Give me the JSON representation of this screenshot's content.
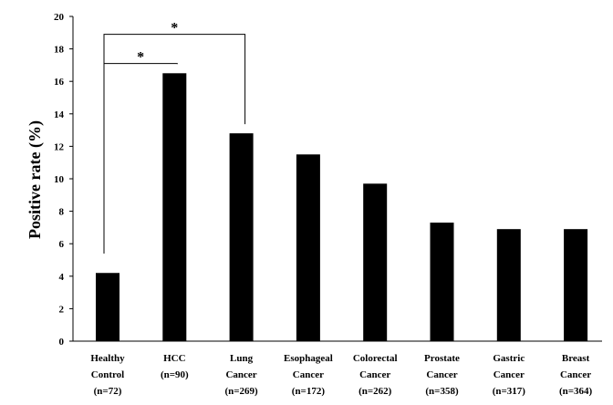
{
  "chart_data": {
    "type": "bar",
    "ylabel": "Positive rate  (%)",
    "ylim": [
      0,
      20
    ],
    "yticks": [
      "0",
      "2",
      "4",
      "6",
      "8",
      "10",
      "12",
      "14",
      "16",
      "18",
      "20"
    ],
    "grid": false,
    "bar_color": "#000000",
    "categories": [
      [
        "Healthy",
        "Control",
        "(n=72)"
      ],
      [
        "HCC",
        "(n=90)"
      ],
      [
        "Lung",
        "Cancer",
        "(n=269)"
      ],
      [
        "Esophageal",
        "Cancer",
        "(n=172)"
      ],
      [
        "Colorectal",
        "Cancer",
        "(n=262)"
      ],
      [
        "Prostate",
        "Cancer",
        "(n=358)"
      ],
      [
        "Gastric",
        "Cancer",
        "(n=317)"
      ],
      [
        "Breast",
        "Cancer",
        "(n=364)"
      ]
    ],
    "values": [
      4.2,
      16.5,
      12.8,
      11.5,
      9.7,
      7.3,
      6.9,
      6.9
    ],
    "significance": [
      {
        "from": 0,
        "to": 1,
        "label": "*"
      },
      {
        "from": 0,
        "to": 2,
        "label": "*"
      }
    ]
  }
}
